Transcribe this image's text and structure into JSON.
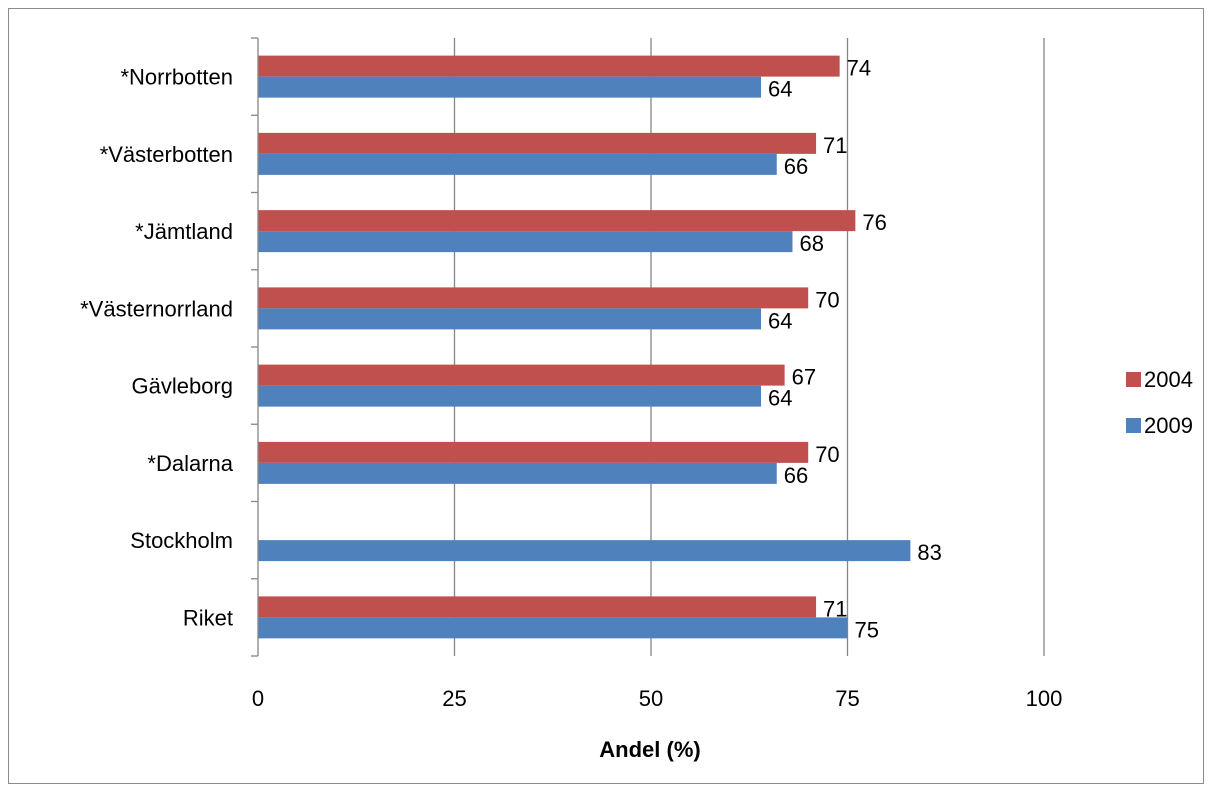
{
  "chart_data": {
    "type": "bar",
    "orientation": "horizontal",
    "categories": [
      "*Norrbotten",
      "*Västerbotten",
      "*Jämtland",
      "*Västernorrland",
      "Gävleborg",
      "*Dalarna",
      "Stockholm",
      "Riket"
    ],
    "series": [
      {
        "name": "2004",
        "color": "#c0504d",
        "values": [
          74,
          71,
          76,
          70,
          67,
          70,
          null,
          71
        ]
      },
      {
        "name": "2009",
        "color": "#4f81bd",
        "values": [
          64,
          66,
          68,
          64,
          64,
          66,
          83,
          75
        ]
      }
    ],
    "xlabel": "Andel (%)",
    "ylabel": "",
    "title": "",
    "xlim": [
      0,
      100
    ],
    "xticks": [
      0,
      25,
      50,
      75,
      100
    ],
    "grid": "vertical major gridlines",
    "legend_position": "right"
  }
}
